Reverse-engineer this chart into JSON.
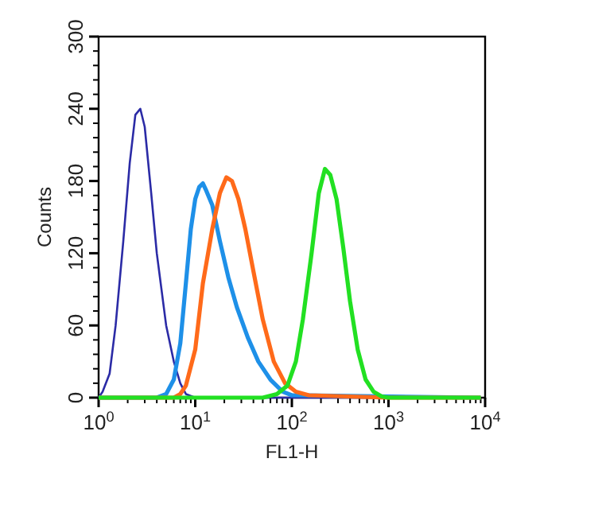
{
  "chart_data": {
    "type": "line",
    "xlabel": "FL1-H",
    "ylabel": "Counts",
    "log": "x",
    "xlim": [
      1,
      10000
    ],
    "ylim": [
      0,
      300
    ],
    "xticks": [
      {
        "value": 1,
        "label": "10$^{0}$"
      },
      {
        "value": 2,
        "label": null
      },
      {
        "value": 3,
        "label": null
      },
      {
        "value": 4,
        "label": null
      },
      {
        "value": 5,
        "label": null
      },
      {
        "value": 6,
        "label": null
      },
      {
        "value": 7,
        "label": null
      },
      {
        "value": 8,
        "label": null
      },
      {
        "value": 9,
        "label": null
      },
      {
        "value": 10,
        "label": "10$^{1}$"
      },
      {
        "value": 20,
        "label": null
      },
      {
        "value": 30,
        "label": null
      },
      {
        "value": 40,
        "label": null
      },
      {
        "value": 50,
        "label": null
      },
      {
        "value": 60,
        "label": null
      },
      {
        "value": 70,
        "label": null
      },
      {
        "value": 80,
        "label": null
      },
      {
        "value": 90,
        "label": null
      },
      {
        "value": 100,
        "label": "10$^{2}$"
      },
      {
        "value": 200,
        "label": null
      },
      {
        "value": 300,
        "label": null
      },
      {
        "value": 400,
        "label": null
      },
      {
        "value": 500,
        "label": null
      },
      {
        "value": 600,
        "label": null
      },
      {
        "value": 700,
        "label": null
      },
      {
        "value": 800,
        "label": null
      },
      {
        "value": 900,
        "label": null
      },
      {
        "value": 1000,
        "label": "10$^{3}$"
      },
      {
        "value": 2000,
        "label": null
      },
      {
        "value": 3000,
        "label": null
      },
      {
        "value": 4000,
        "label": null
      },
      {
        "value": 5000,
        "label": null
      },
      {
        "value": 6000,
        "label": null
      },
      {
        "value": 7000,
        "label": null
      },
      {
        "value": 8000,
        "label": null
      },
      {
        "value": 9000,
        "label": null
      },
      {
        "value": 10000,
        "label": "10$^{4}$"
      }
    ],
    "yticks": [
      0,
      {
        "value": 12,
        "label": null
      },
      {
        "value": 24,
        "label": null
      },
      {
        "value": 36,
        "label": null
      },
      {
        "value": 48,
        "label": null
      },
      60,
      {
        "value": 72,
        "label": null
      },
      {
        "value": 84,
        "label": null
      },
      {
        "value": 96,
        "label": null
      },
      {
        "value": 108,
        "label": null
      },
      120,
      {
        "value": 132,
        "label": null
      },
      {
        "value": 144,
        "label": null
      },
      {
        "value": 156,
        "label": null
      },
      {
        "value": 168,
        "label": null
      },
      180,
      {
        "value": 192,
        "label": null
      },
      {
        "value": 204,
        "label": null
      },
      {
        "value": 216,
        "label": null
      },
      {
        "value": 228,
        "label": null
      },
      240,
      {
        "value": 252,
        "label": null
      },
      {
        "value": 264,
        "label": null
      },
      {
        "value": 276,
        "label": null
      },
      {
        "value": 288,
        "label": null
      },
      300
    ],
    "grid": false,
    "marker": "none",
    "line_style": "solid",
    "series": [
      {
        "color": "#2b2ba6",
        "x": [
          1,
          1.1,
          1.3,
          1.5,
          1.8,
          2.1,
          2.4,
          2.7,
          3.0,
          3.5,
          4,
          5,
          6,
          7,
          8,
          10,
          20,
          100,
          9000
        ],
        "values": [
          0,
          5,
          20,
          60,
          130,
          195,
          235,
          240,
          225,
          170,
          120,
          60,
          30,
          12,
          3,
          0,
          0,
          0,
          0
        ]
      },
      {
        "color": "#1e90e8",
        "x": [
          1,
          4,
          5,
          6,
          7,
          8,
          9,
          10,
          11,
          12,
          13,
          15,
          18,
          22,
          27,
          35,
          45,
          60,
          80,
          100,
          9000
        ],
        "values": [
          0,
          0,
          3,
          15,
          45,
          95,
          140,
          165,
          175,
          178,
          172,
          160,
          130,
          100,
          75,
          50,
          30,
          15,
          5,
          2,
          0
        ]
      },
      {
        "color": "#ff6a1a",
        "x": [
          1,
          6,
          7,
          8,
          10,
          12,
          15,
          18,
          21,
          24,
          28,
          33,
          40,
          50,
          65,
          85,
          110,
          150,
          1000,
          9000
        ],
        "values": [
          0,
          0,
          3,
          10,
          40,
          95,
          140,
          170,
          183,
          180,
          165,
          140,
          105,
          65,
          30,
          12,
          5,
          2,
          0,
          0
        ]
      },
      {
        "color": "#22e022",
        "x": [
          1,
          50,
          70,
          90,
          110,
          130,
          160,
          190,
          220,
          250,
          290,
          340,
          400,
          480,
          580,
          700,
          850,
          1000,
          9000
        ],
        "values": [
          0,
          0,
          3,
          10,
          30,
          65,
          120,
          170,
          190,
          185,
          165,
          125,
          80,
          40,
          15,
          5,
          1,
          0,
          0
        ]
      }
    ]
  }
}
